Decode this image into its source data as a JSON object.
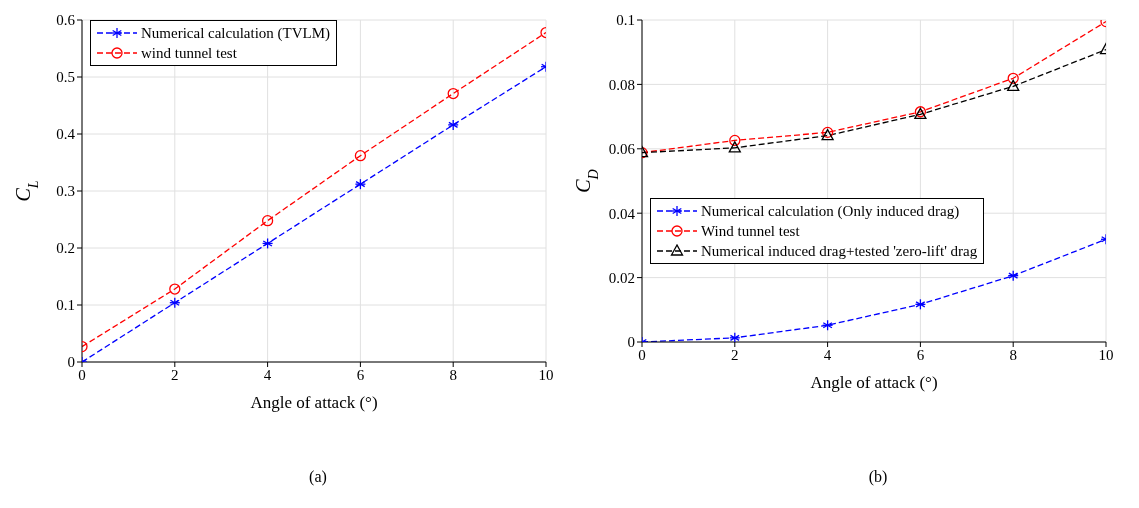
{
  "chart_data": [
    {
      "type": "line",
      "xlabel": "Angle of attack (°)",
      "ylabel": "C$_{L}$",
      "x": [
        0,
        2,
        4,
        6,
        8,
        10
      ],
      "xlim": [
        0,
        10
      ],
      "xticks": [
        0,
        2,
        4,
        6,
        8,
        10
      ],
      "ylim": [
        0,
        0.6
      ],
      "yticks": [
        0,
        0.1,
        0.2,
        0.3,
        0.4,
        0.5,
        0.6
      ],
      "grid": true,
      "legend": "top left",
      "annotations": [
        "(a)"
      ],
      "series": [
        {
          "name": "Numerical calculation (TVLM)",
          "color": "#0000ff",
          "marker": "cross",
          "line_style": "dashed",
          "values": [
            0,
            0.104,
            0.208,
            0.312,
            0.416,
            0.518
          ]
        },
        {
          "name": "wind tunnel test",
          "color": "#ff0000",
          "marker": "circle",
          "line_style": "dashed",
          "values": [
            0.027,
            0.128,
            0.248,
            0.362,
            0.471,
            0.578
          ]
        }
      ]
    },
    {
      "type": "line",
      "xlabel": "Angle of attack (°)",
      "ylabel": "C$_{D}$",
      "x": [
        0,
        2,
        4,
        6,
        8,
        10
      ],
      "xlim": [
        0,
        10
      ],
      "xticks": [
        0,
        2,
        4,
        6,
        8,
        10
      ],
      "ylim": [
        0,
        0.1
      ],
      "yticks": [
        0,
        0.02,
        0.04,
        0.06,
        0.08,
        0.1
      ],
      "grid": true,
      "legend": "left",
      "annotations": [
        "(b)"
      ],
      "series": [
        {
          "name": "Numerical calculation (Only induced drag)",
          "color": "#0000ff",
          "marker": "cross",
          "line_style": "dashed",
          "values": [
            0,
            0.0013,
            0.0052,
            0.0117,
            0.0206,
            0.0319
          ]
        },
        {
          "name": "Wind tunnel test",
          "color": "#ff0000",
          "marker": "circle",
          "line_style": "dashed",
          "values": [
            0.0588,
            0.0626,
            0.0651,
            0.0715,
            0.0819,
            0.0995
          ]
        },
        {
          "name": "Numerical induced drag+tested 'zero-lift' drag",
          "color": "#000000",
          "marker": "triangle",
          "line_style": "dashed",
          "values": [
            0.0588,
            0.0603,
            0.0641,
            0.0707,
            0.0794,
            0.0908
          ]
        }
      ]
    }
  ]
}
